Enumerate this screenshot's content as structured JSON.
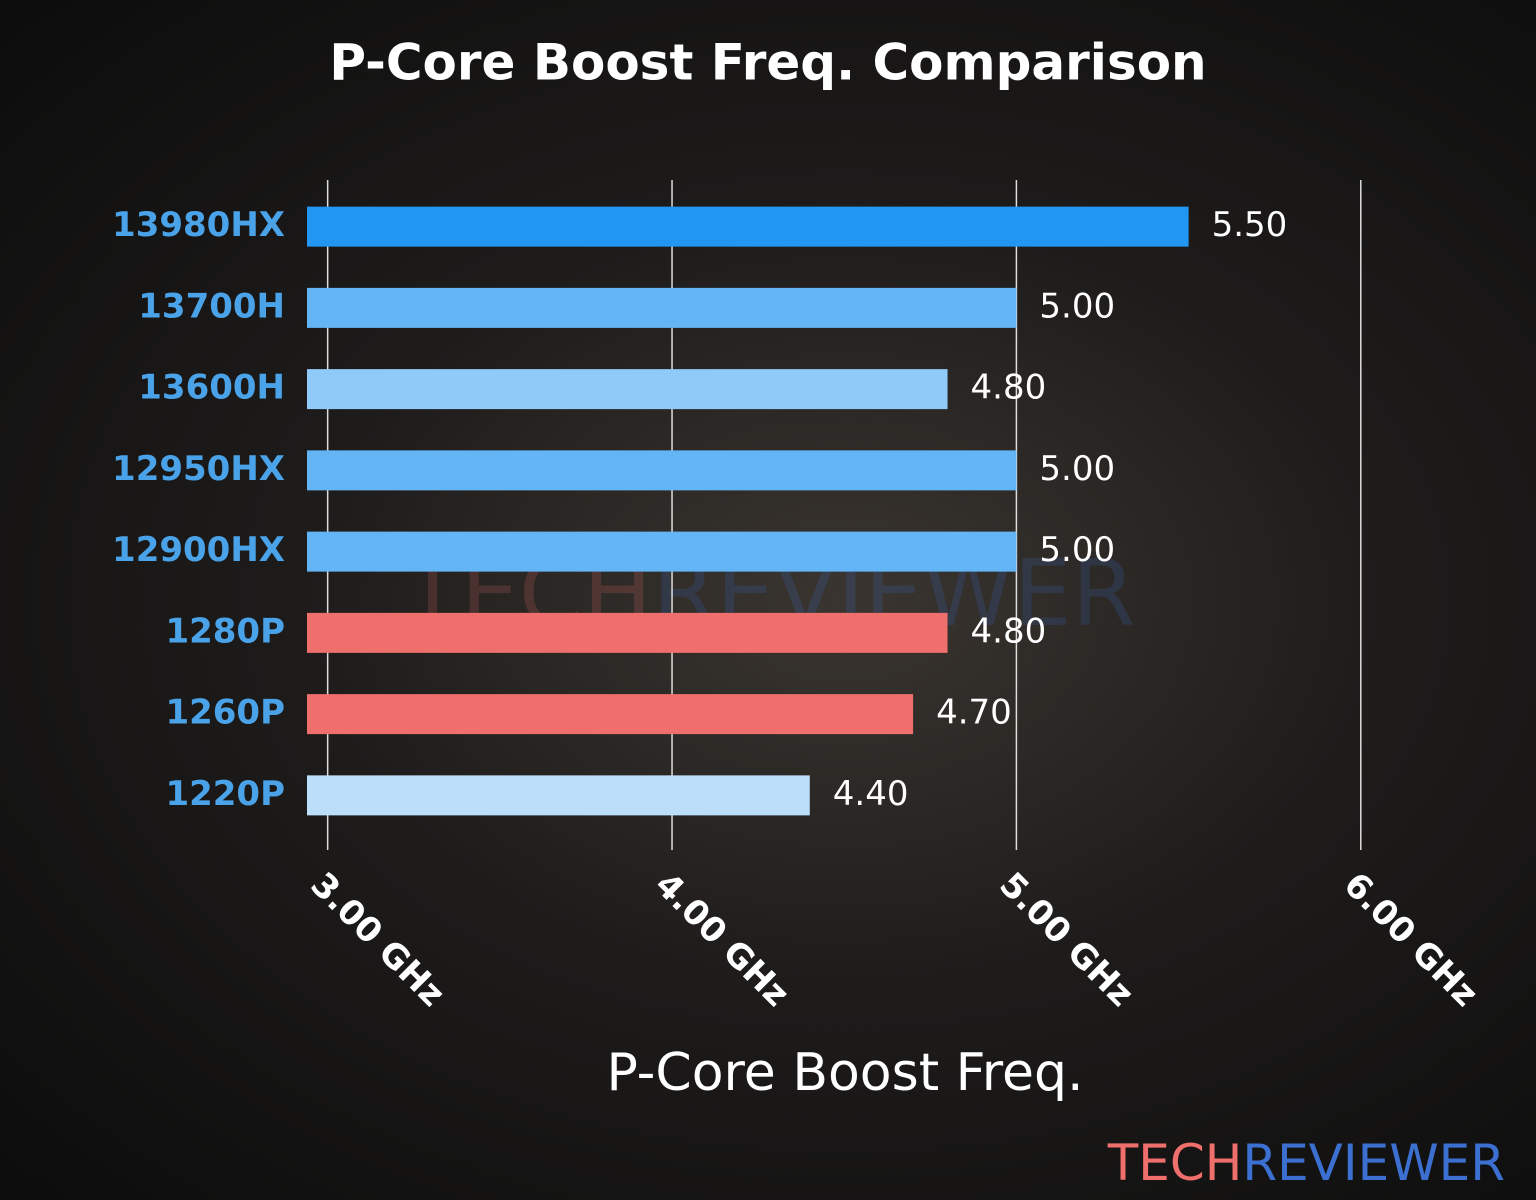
{
  "chart_data": {
    "type": "barh",
    "title": "P-Core Boost Freq. Comparison",
    "x_label": "P-Core Boost Freq.",
    "categories": [
      "13980HX",
      "13700H",
      "13600H",
      "12950HX",
      "12900HX",
      "1280P",
      "1260P",
      "1220P"
    ],
    "values": [
      5.5,
      5.0,
      4.8,
      5.0,
      5.0,
      4.8,
      4.7,
      4.4
    ],
    "value_labels": [
      "5.50",
      "5.00",
      "4.80",
      "5.00",
      "5.00",
      "4.80",
      "4.70",
      "4.40"
    ],
    "colors": [
      "#2196f3",
      "#64b5f6",
      "#90caf9",
      "#64b5f6",
      "#64b5f6",
      "#ef6f6c",
      "#ef6f6c",
      "#bbdefb"
    ],
    "xlim": [
      2.94,
      6.05
    ],
    "xticks": [
      {
        "value": 3,
        "label": "3.00 GHz"
      },
      {
        "value": 4,
        "label": "4.00 GHz"
      },
      {
        "value": 5,
        "label": "5.00 GHz"
      },
      {
        "value": 6,
        "label": "6.00 GHz"
      }
    ],
    "grid": true
  },
  "branding": {
    "logo": [
      "TECH",
      "REVIEWER"
    ]
  }
}
